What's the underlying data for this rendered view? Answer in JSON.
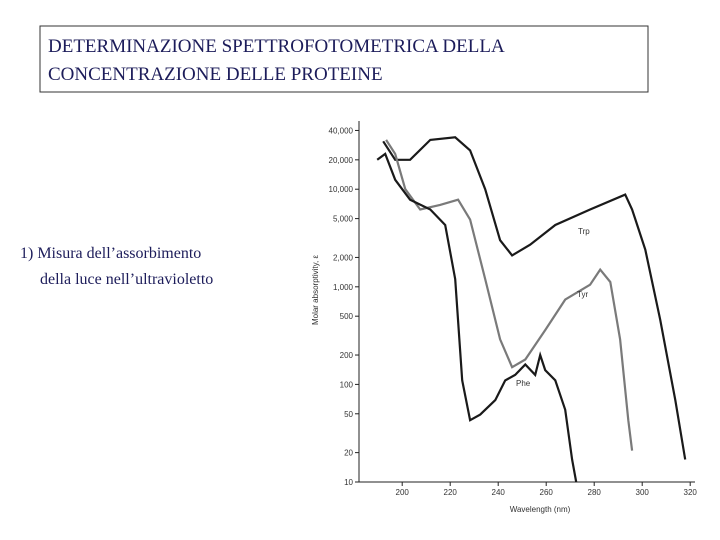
{
  "header": {
    "title_lines": [
      "DETERMINAZIONE SPETTROFOTOMETRICA  DELLA",
      "CONCENTRAZIONE DELLE PROTEINE"
    ]
  },
  "body": {
    "lines": [
      "1) Misura dell’assorbimento",
      "della luce nell’ultravioletto"
    ]
  },
  "chart_data": {
    "type": "line",
    "xlabel": "Wavelength (nm)",
    "ylabel": "Molar absorptivity, ε",
    "xlim": [
      182,
      322
    ],
    "xticks": [
      200,
      220,
      240,
      260,
      280,
      300,
      320
    ],
    "ylim": [
      10,
      50000
    ],
    "ylog": true,
    "yticks": [
      10,
      20,
      50,
      100,
      200,
      500,
      {
        "value": 1000,
        "label": "1,000"
      },
      {
        "value": 2000,
        "label": "2,000"
      },
      {
        "value": 5000,
        "label": "5,000"
      },
      {
        "value": 10000,
        "label": "10,000"
      },
      {
        "value": 20000,
        "label": "20,000"
      },
      {
        "value": 40000,
        "label": "40,000"
      }
    ],
    "series": [
      {
        "name": "Trp",
        "color": "#1a1a1a",
        "x": [
          192.1,
          197.1,
          203.3,
          211.7,
          222.1,
          228.3,
          234.6,
          240.8,
          245.8,
          253.3,
          263.8,
          278.3,
          292.9,
          295.8,
          301.3,
          307.5,
          313.8,
          317.9
        ],
        "values": [
          31000,
          20000,
          20000,
          32000,
          34000,
          25000,
          10000,
          3000,
          2100,
          2700,
          4300,
          6200,
          8800,
          6200,
          2400,
          460,
          69,
          17
        ]
      },
      {
        "name": "Tyr",
        "color": "#7a7a7a",
        "x": [
          193.3,
          197.1,
          201.3,
          207.5,
          215.8,
          223.3,
          228.3,
          234.6,
          240.8,
          245.8,
          251.3,
          259.6,
          267.9,
          278.3,
          282.5,
          286.7,
          290.8,
          294.2,
          295.8
        ],
        "values": [
          32000,
          23000,
          10000,
          6200,
          6900,
          7800,
          4900,
          1200,
          290,
          150,
          180,
          360,
          740,
          1050,
          1500,
          1120,
          290,
          43,
          21
        ]
      },
      {
        "name": "Phe",
        "color": "#1a1a1a",
        "x": [
          189.6,
          192.9,
          197.1,
          203.3,
          211.7,
          217.9,
          222.1,
          225.0,
          228.3,
          232.5,
          238.8,
          242.9,
          247.1,
          251.3,
          255.4,
          257.5,
          259.6,
          263.8,
          267.9,
          270.8,
          272.5
        ],
        "values": [
          20000,
          23000,
          12500,
          7800,
          6200,
          4300,
          1200,
          110,
          43,
          49,
          69,
          110,
          125,
          160,
          125,
          200,
          140,
          110,
          55,
          17,
          10
        ]
      }
    ]
  }
}
